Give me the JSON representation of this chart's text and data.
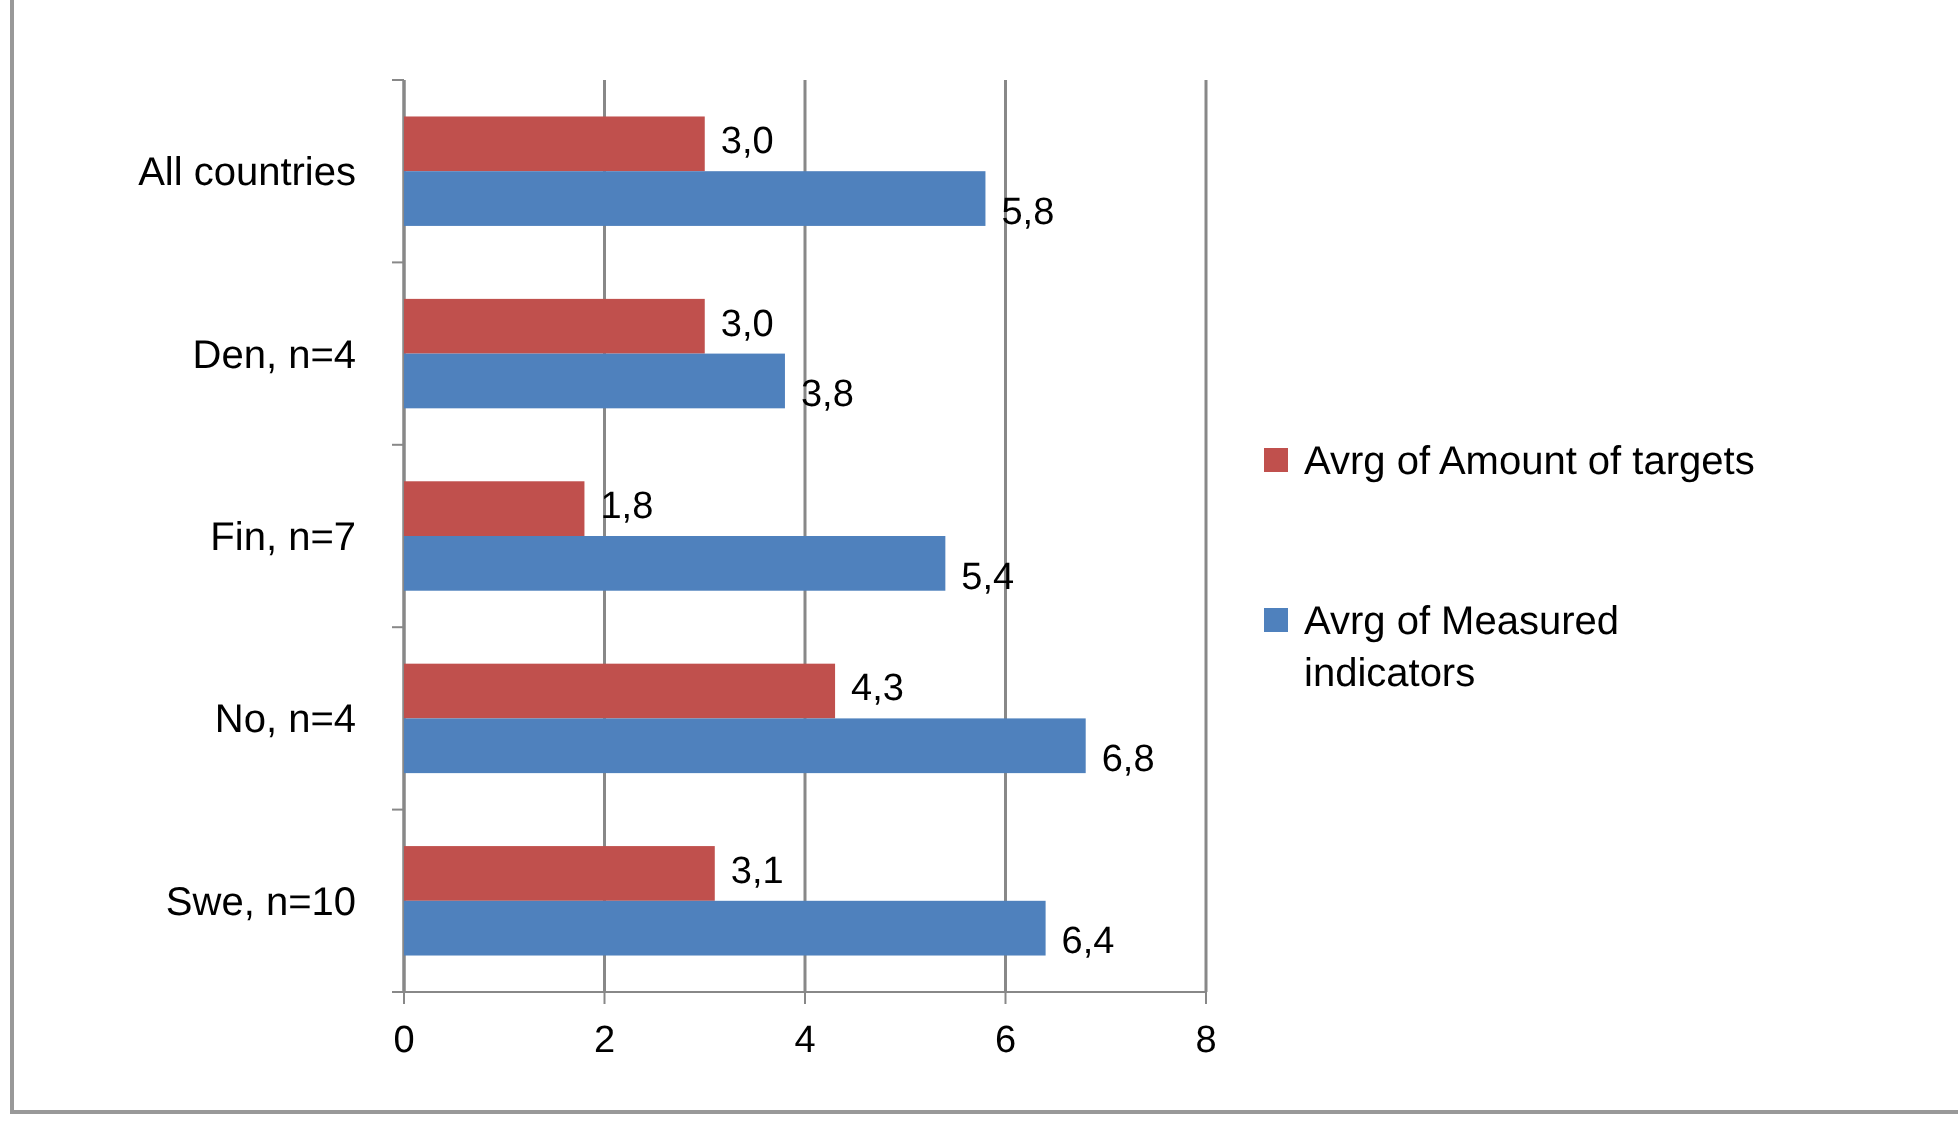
{
  "chart_data": {
    "type": "bar",
    "orientation": "horizontal",
    "categories": [
      "All countries",
      "Den, n=4",
      "Fin, n=7",
      "No, n=4",
      "Swe, n=10"
    ],
    "series": [
      {
        "name": "Avrg of Amount of targets",
        "color": "#c0504d",
        "values": [
          3.0,
          3.0,
          1.8,
          4.3,
          3.1
        ],
        "value_labels": [
          "3,0",
          "3,0",
          "1,8",
          "4,3",
          "3,1"
        ]
      },
      {
        "name": "Avrg of Measured indicators",
        "color": "#4f81bd",
        "values": [
          5.8,
          3.8,
          5.4,
          6.8,
          6.4
        ],
        "value_labels": [
          "5,8",
          "3,8",
          "5,4",
          "6,8",
          "6,4"
        ]
      }
    ],
    "xlim": [
      0,
      8
    ],
    "xticks": [
      0,
      2,
      4,
      6,
      8
    ],
    "grid": "x",
    "legend": "right"
  }
}
